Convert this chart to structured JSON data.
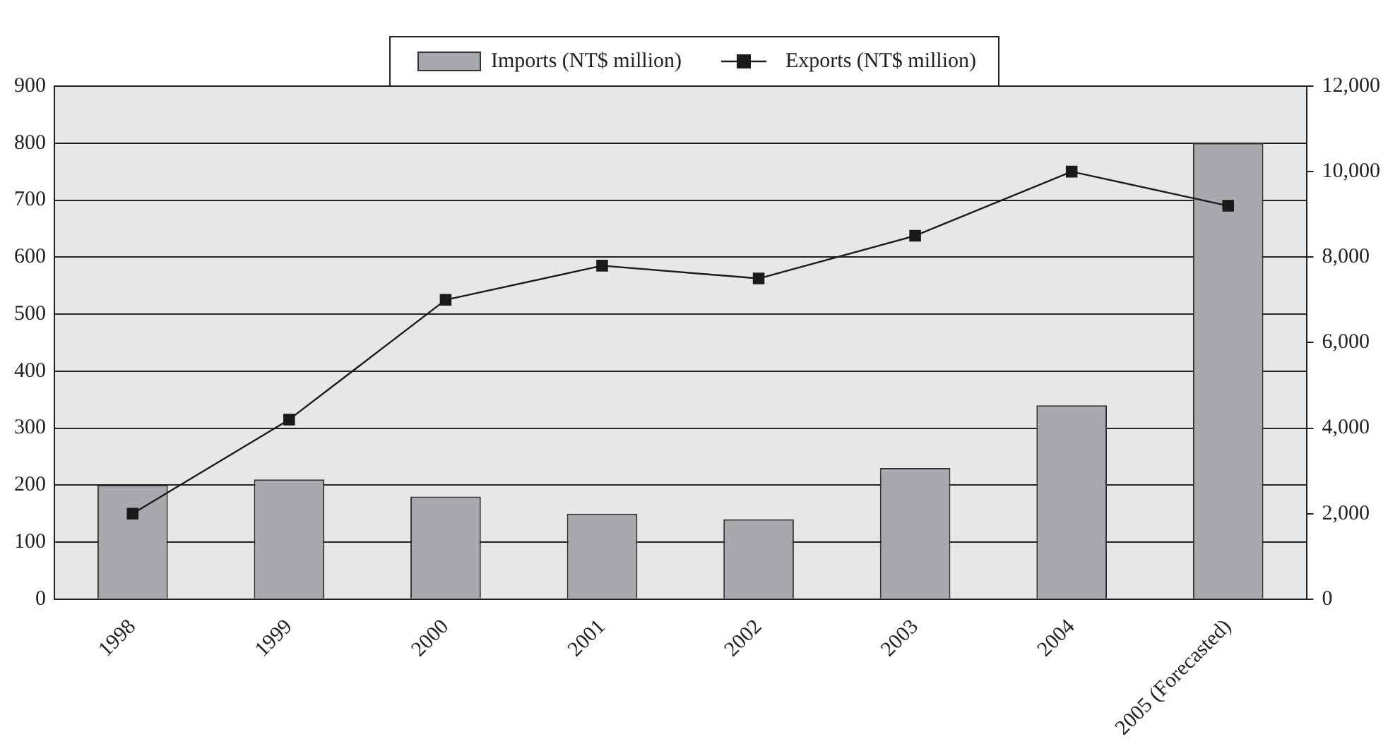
{
  "chart_data": {
    "type": "bar",
    "categories": [
      "1998",
      "1999",
      "2000",
      "2001",
      "2002",
      "2003",
      "2004",
      "2005 (Forecasted)"
    ],
    "series": [
      {
        "name": "Imports (NT$ million)",
        "color": "#a8a9ad",
        "values": [
          200,
          210,
          180,
          150,
          140,
          230,
          340,
          800
        ]
      },
      {
        "name": "Exports (NT$ million)",
        "type": "line",
        "axis": "y2",
        "color": "#1a1a1a",
        "values": [
          2000,
          4200,
          7000,
          7800,
          7500,
          8500,
          10000,
          9200
        ]
      }
    ],
    "ylim": [
      0,
      900
    ],
    "yticks": [
      0,
      100,
      200,
      300,
      400,
      500,
      600,
      700,
      800,
      900
    ],
    "y2lim": [
      0,
      12000
    ],
    "y2ticks": [
      0,
      {
        "value": 2000,
        "label": "2,000"
      },
      {
        "value": 4000,
        "label": "4,000"
      },
      {
        "value": 6000,
        "label": "6,000"
      },
      {
        "value": 8000,
        "label": "8,000"
      },
      {
        "value": 10000,
        "label": "10,000"
      },
      {
        "value": 12000,
        "label": "12,000"
      }
    ],
    "grid": "y",
    "legend": "top",
    "marker": "square"
  }
}
